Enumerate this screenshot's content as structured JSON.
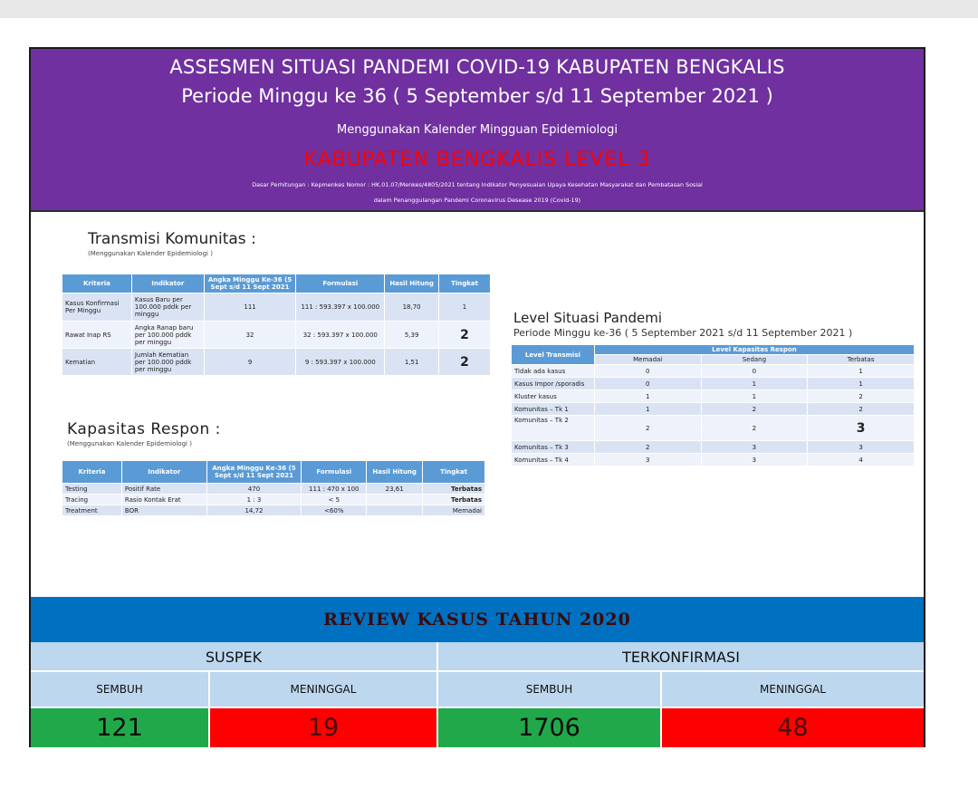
{
  "header": {
    "title_line1": "ASSESMEN SITUASI PANDEMI COVID-19 KABUPATEN BENGKALIS",
    "title_line2": "Periode Minggu ke 36 ( 5 September s/d 11 September 2021 )",
    "subtitle": "Menggunakan Kalender Mingguan Epidemiologi",
    "level": "KABUPATEN BENGKALIS LEVEL 3",
    "basis_line1": "Dasar Perhitungan : Kepmenkes Nomor : HK.01.07/Menkes/4805/2021 tentang Indikator Penyesuaian Upaya Kesehatan Masyarakat dan Pembatasan Sosial",
    "basis_line2": "dalam Penanggulangan Pandemi Coronavirus Desease 2019 (Covid-19)"
  },
  "transmisi": {
    "title": "Transmisi Komunitas :",
    "note": "(Menggunakan Kalender Epidemiologi )",
    "headers": [
      "Kriteria",
      "Indikator",
      "Angka Minggu Ke-36 (5 Sept s/d 11 Sept 2021",
      "Formulasi",
      "Hasil Hitung",
      "Tingkat"
    ],
    "rows": [
      {
        "kriteria": "Kasus Konfirmasi Per Minggu",
        "indikator": "Kasus Baru per 100.000 pddk per minggu",
        "angka": "111",
        "formulasi": "111 : 593.397 x 100.000",
        "hasil": "18,70",
        "tingkat": "1"
      },
      {
        "kriteria": "Rawat Inap RS",
        "indikator": "Angka Ranap baru per 100.000 pddk per minggu",
        "angka": "32",
        "formulasi": "32 : 593.397 x 100.000",
        "hasil": "5,39",
        "tingkat": "2"
      },
      {
        "kriteria": "Kematian",
        "indikator": "Jumlah Kematian per 100.000 pddk per minggu",
        "angka": "9",
        "formulasi": "9 : 593.397 x 100.000",
        "hasil": "1,51",
        "tingkat": "2"
      }
    ]
  },
  "kapasitas": {
    "title": "Kapasitas Respon :",
    "note": "(Menggunakan Kalender Epidemiologi )",
    "headers": [
      "Kriteria",
      "Indikator",
      "Angka Minggu Ke-36 (5 Sept s/d 11 Sept 2021",
      "Formulasi",
      "Hasil Hitung",
      "Tingkat"
    ],
    "rows": [
      {
        "kriteria": "Testing",
        "indikator": "Positif Rate",
        "angka": "470",
        "formulasi": "111 : 470 x 100",
        "hasil": "23,61",
        "tingkat": "Terbatas"
      },
      {
        "kriteria": "Tracing",
        "indikator": "Rasio Kontak Erat",
        "angka": "1 : 3",
        "formulasi": "< 5",
        "hasil": "",
        "tingkat": "Terbatas"
      },
      {
        "kriteria": "Treatment",
        "indikator": "BOR",
        "angka": "14,72",
        "formulasi": "<60%",
        "hasil": "",
        "tingkat": "Memadai"
      }
    ]
  },
  "level_situasi": {
    "title": "Level Situasi Pandemi",
    "subtitle": "Periode Minggu ke-36 ( 5 September 2021 s/d 11 September 2021 )",
    "header_transmisi": "Level Transmisi",
    "header_kapasitas": "Level Kapasitas Respon",
    "col_headers": [
      "Memadai",
      "Sedang",
      "Terbatas"
    ],
    "rows": [
      {
        "label": "Tidak ada kasus",
        "memadai": "0",
        "sedang": "0",
        "terbatas": "1"
      },
      {
        "label": "Kasus Impor /sporadis",
        "memadai": "0",
        "sedang": "1",
        "terbatas": "1"
      },
      {
        "label": "Kluster kasus",
        "memadai": "1",
        "sedang": "1",
        "terbatas": "2"
      },
      {
        "label": "Komunitas – Tk 1",
        "memadai": "1",
        "sedang": "2",
        "terbatas": "2"
      },
      {
        "label": "Komunitas – Tk 2",
        "memadai": "2",
        "sedang": "2",
        "terbatas": "3"
      },
      {
        "label": "Komunitas – Tk 3",
        "memadai": "2",
        "sedang": "3",
        "terbatas": "3"
      },
      {
        "label": "Komunitas – Tk 4",
        "memadai": "3",
        "sedang": "3",
        "terbatas": "4"
      }
    ]
  },
  "review": {
    "title": "REVIEW KASUS TAHUN 2020",
    "suspek": "SUSPEK",
    "terkonfirmasi": "TERKONFIRMASI",
    "sembuh_label": "SEMBUH",
    "meninggal_label": "MENINGGAL",
    "suspek_sembuh": "121",
    "suspek_meninggal": "19",
    "konfirmasi_sembuh": "1706",
    "konfirmasi_meninggal": "48",
    "colors": {
      "green": "#21a84a",
      "red": "#ff0000",
      "blue": "#0070c0",
      "light_blue": "#bdd7ee"
    }
  }
}
